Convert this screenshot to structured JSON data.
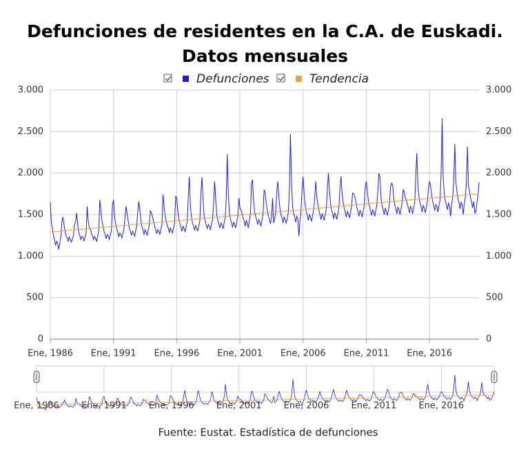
{
  "chart_data": {
    "type": "line",
    "title": "Defunciones de residentes en la C.A. de Euskadi. Datos mensuales",
    "source": "Fuente: Eustat. Estadística de defunciones",
    "x": [
      "1986-01",
      "1986-02",
      "1986-03",
      "1986-04",
      "1986-05",
      "1986-06",
      "1986-07",
      "1986-08",
      "1986-09",
      "1986-10",
      "1986-11",
      "1986-12",
      "1987-01",
      "1987-02",
      "1987-03",
      "1987-04",
      "1987-05",
      "1987-06",
      "1987-07",
      "1987-08",
      "1987-09",
      "1987-10",
      "1987-11",
      "1987-12",
      "1988-01",
      "1988-02",
      "1988-03",
      "1988-04",
      "1988-05",
      "1988-06",
      "1988-07",
      "1988-08",
      "1988-09",
      "1988-10",
      "1988-11",
      "1988-12",
      "1989-01",
      "1989-02",
      "1989-03",
      "1989-04",
      "1989-05",
      "1989-06",
      "1989-07",
      "1989-08",
      "1989-09",
      "1989-10",
      "1989-11",
      "1989-12",
      "1990-01",
      "1990-02",
      "1990-03",
      "1990-04",
      "1990-05",
      "1990-06",
      "1990-07",
      "1990-08",
      "1990-09",
      "1990-10",
      "1990-11",
      "1990-12",
      "1991-01",
      "1991-02",
      "1991-03",
      "1991-04",
      "1991-05",
      "1991-06",
      "1991-07",
      "1991-08",
      "1991-09",
      "1991-10",
      "1991-11",
      "1991-12",
      "1992-01",
      "1992-02",
      "1992-03",
      "1992-04",
      "1992-05",
      "1992-06",
      "1992-07",
      "1992-08",
      "1992-09",
      "1992-10",
      "1992-11",
      "1992-12",
      "1993-01",
      "1993-02",
      "1993-03",
      "1993-04",
      "1993-05",
      "1993-06",
      "1993-07",
      "1993-08",
      "1993-09",
      "1993-10",
      "1993-11",
      "1993-12",
      "1994-01",
      "1994-02",
      "1994-03",
      "1994-04",
      "1994-05",
      "1994-06",
      "1994-07",
      "1994-08",
      "1994-09",
      "1994-10",
      "1994-11",
      "1994-12",
      "1995-01",
      "1995-02",
      "1995-03",
      "1995-04",
      "1995-05",
      "1995-06",
      "1995-07",
      "1995-08",
      "1995-09",
      "1995-10",
      "1995-11",
      "1995-12",
      "1996-01",
      "1996-02",
      "1996-03",
      "1996-04",
      "1996-05",
      "1996-06",
      "1996-07",
      "1996-08",
      "1996-09",
      "1996-10",
      "1996-11",
      "1996-12",
      "1997-01",
      "1997-02",
      "1997-03",
      "1997-04",
      "1997-05",
      "1997-06",
      "1997-07",
      "1997-08",
      "1997-09",
      "1997-10",
      "1997-11",
      "1997-12",
      "1998-01",
      "1998-02",
      "1998-03",
      "1998-04",
      "1998-05",
      "1998-06",
      "1998-07",
      "1998-08",
      "1998-09",
      "1998-10",
      "1998-11",
      "1998-12",
      "1999-01",
      "1999-02",
      "1999-03",
      "1999-04",
      "1999-05",
      "1999-06",
      "1999-07",
      "1999-08",
      "1999-09",
      "1999-10",
      "1999-11",
      "1999-12",
      "2000-01",
      "2000-02",
      "2000-03",
      "2000-04",
      "2000-05",
      "2000-06",
      "2000-07",
      "2000-08",
      "2000-09",
      "2000-10",
      "2000-11",
      "2000-12",
      "2001-01",
      "2001-02",
      "2001-03",
      "2001-04",
      "2001-05",
      "2001-06",
      "2001-07",
      "2001-08",
      "2001-09",
      "2001-10",
      "2001-11",
      "2001-12",
      "2002-01",
      "2002-02",
      "2002-03",
      "2002-04",
      "2002-05",
      "2002-06",
      "2002-07",
      "2002-08",
      "2002-09",
      "2002-10",
      "2002-11",
      "2002-12",
      "2003-01",
      "2003-02",
      "2003-03",
      "2003-04",
      "2003-05",
      "2003-06",
      "2003-07",
      "2003-08",
      "2003-09",
      "2003-10",
      "2003-11",
      "2003-12",
      "2004-01",
      "2004-02",
      "2004-03",
      "2004-04",
      "2004-05",
      "2004-06",
      "2004-07",
      "2004-08",
      "2004-09",
      "2004-10",
      "2004-11",
      "2004-12",
      "2005-01",
      "2005-02",
      "2005-03",
      "2005-04",
      "2005-05",
      "2005-06",
      "2005-07",
      "2005-08",
      "2005-09",
      "2005-10",
      "2005-11",
      "2005-12",
      "2006-01",
      "2006-02",
      "2006-03",
      "2006-04",
      "2006-05",
      "2006-06",
      "2006-07",
      "2006-08",
      "2006-09",
      "2006-10",
      "2006-11",
      "2006-12",
      "2007-01",
      "2007-02",
      "2007-03",
      "2007-04",
      "2007-05",
      "2007-06",
      "2007-07",
      "2007-08",
      "2007-09",
      "2007-10",
      "2007-11",
      "2007-12",
      "2008-01",
      "2008-02",
      "2008-03",
      "2008-04",
      "2008-05",
      "2008-06",
      "2008-07",
      "2008-08",
      "2008-09",
      "2008-10",
      "2008-11",
      "2008-12",
      "2009-01",
      "2009-02",
      "2009-03",
      "2009-04",
      "2009-05",
      "2009-06",
      "2009-07",
      "2009-08",
      "2009-09",
      "2009-10",
      "2009-11",
      "2009-12",
      "2010-01",
      "2010-02",
      "2010-03",
      "2010-04",
      "2010-05",
      "2010-06",
      "2010-07",
      "2010-08",
      "2010-09",
      "2010-10",
      "2010-11",
      "2010-12",
      "2011-01",
      "2011-02",
      "2011-03",
      "2011-04",
      "2011-05",
      "2011-06",
      "2011-07",
      "2011-08",
      "2011-09",
      "2011-10",
      "2011-11",
      "2011-12",
      "2012-01",
      "2012-02",
      "2012-03",
      "2012-04",
      "2012-05",
      "2012-06",
      "2012-07",
      "2012-08",
      "2012-09",
      "2012-10",
      "2012-11",
      "2012-12",
      "2013-01",
      "2013-02",
      "2013-03",
      "2013-04",
      "2013-05",
      "2013-06",
      "2013-07",
      "2013-08",
      "2013-09",
      "2013-10",
      "2013-11",
      "2013-12",
      "2014-01",
      "2014-02",
      "2014-03",
      "2014-04",
      "2014-05",
      "2014-06",
      "2014-07",
      "2014-08",
      "2014-09",
      "2014-10",
      "2014-11",
      "2014-12",
      "2015-01",
      "2015-02",
      "2015-03",
      "2015-04",
      "2015-05",
      "2015-06",
      "2015-07",
      "2015-08",
      "2015-09",
      "2015-10",
      "2015-11",
      "2015-12",
      "2016-01",
      "2016-02",
      "2016-03",
      "2016-04",
      "2016-05",
      "2016-06",
      "2016-07",
      "2016-08",
      "2016-09",
      "2016-10",
      "2016-11",
      "2016-12",
      "2017-01",
      "2017-02",
      "2017-03",
      "2017-04",
      "2017-05",
      "2017-06",
      "2017-07",
      "2017-08",
      "2017-09",
      "2017-10",
      "2017-11",
      "2017-12",
      "2018-01",
      "2018-02",
      "2018-03",
      "2018-04",
      "2018-05",
      "2018-06",
      "2018-07",
      "2018-08",
      "2018-09",
      "2018-10",
      "2018-11",
      "2018-12",
      "2019-01",
      "2019-02",
      "2019-03",
      "2019-04",
      "2019-05",
      "2019-06",
      "2019-07",
      "2019-08",
      "2019-09",
      "2019-10",
      "2019-11",
      "2019-12"
    ],
    "series": [
      {
        "name": "Defunciones",
        "color": "#1c1ce0",
        "values": [
          1650,
          1400,
          1330,
          1250,
          1200,
          1130,
          1180,
          1150,
          1080,
          1160,
          1230,
          1420,
          1470,
          1380,
          1300,
          1250,
          1220,
          1180,
          1230,
          1200,
          1170,
          1210,
          1250,
          1380,
          1410,
          1520,
          1380,
          1280,
          1250,
          1200,
          1240,
          1230,
          1180,
          1230,
          1280,
          1600,
          1420,
          1350,
          1330,
          1280,
          1240,
          1200,
          1240,
          1210,
          1180,
          1250,
          1300,
          1680,
          1550,
          1420,
          1370,
          1300,
          1260,
          1210,
          1260,
          1240,
          1200,
          1260,
          1310,
          1620,
          1680,
          1480,
          1390,
          1330,
          1290,
          1230,
          1280,
          1260,
          1220,
          1280,
          1340,
          1480,
          1600,
          1500,
          1420,
          1340,
          1300,
          1250,
          1300,
          1280,
          1240,
          1300,
          1360,
          1530,
          1660,
          1560,
          1440,
          1350,
          1320,
          1260,
          1320,
          1290,
          1250,
          1310,
          1380,
          1550,
          1520,
          1480,
          1420,
          1360,
          1320,
          1270,
          1320,
          1300,
          1260,
          1330,
          1380,
          1740,
          1600,
          1480,
          1430,
          1370,
          1340,
          1280,
          1340,
          1310,
          1280,
          1340,
          1400,
          1720,
          1700,
          1560,
          1450,
          1390,
          1350,
          1300,
          1360,
          1330,
          1290,
          1360,
          1420,
          1720,
          1960,
          1600,
          1470,
          1400,
          1360,
          1310,
          1370,
          1340,
          1300,
          1370,
          1430,
          1760,
          1950,
          1680,
          1490,
          1420,
          1380,
          1330,
          1380,
          1360,
          1320,
          1380,
          1450,
          1620,
          1900,
          1700,
          1500,
          1430,
          1390,
          1340,
          1400,
          1370,
          1330,
          1400,
          1460,
          1680,
          2230,
          1750,
          1520,
          1450,
          1400,
          1350,
          1410,
          1380,
          1340,
          1410,
          1480,
          1700,
          1580,
          1560,
          1520,
          1460,
          1420,
          1360,
          1430,
          1400,
          1340,
          1430,
          1500,
          1880,
          1920,
          1650,
          1540,
          1480,
          1430,
          1380,
          1440,
          1410,
          1360,
          1440,
          1510,
          1800,
          1760,
          1640,
          1550,
          1490,
          1440,
          1390,
          1460,
          1700,
          1400,
          1450,
          1520,
          1780,
          1900,
          1720,
          1570,
          1500,
          1460,
          1400,
          1470,
          1440,
          1400,
          1460,
          1530,
          1800,
          2470,
          1900,
          1600,
          1520,
          1470,
          1410,
          1480,
          1450,
          1240,
          1420,
          1540,
          1820,
          1960,
          1750,
          1610,
          1540,
          1490,
          1430,
          1500,
          1470,
          1420,
          1490,
          1560,
          1700,
          1900,
          1720,
          1620,
          1550,
          1500,
          1440,
          1510,
          1480,
          1430,
          1500,
          1570,
          1780,
          2000,
          1800,
          1640,
          1560,
          1510,
          1450,
          1520,
          1490,
          1440,
          1510,
          1580,
          1820,
          1960,
          1760,
          1650,
          1580,
          1530,
          1470,
          1540,
          1510,
          1460,
          1530,
          1600,
          1760,
          1750,
          1720,
          1660,
          1590,
          1540,
          1480,
          1550,
          1520,
          1470,
          1540,
          1610,
          1840,
          1900,
          1780,
          1670,
          1600,
          1550,
          1490,
          1560,
          1530,
          1480,
          1550,
          1620,
          1800,
          2000,
          1950,
          1690,
          1610,
          1560,
          1500,
          1580,
          1540,
          1490,
          1560,
          1630,
          1830,
          1880,
          1860,
          1700,
          1620,
          1570,
          1510,
          1590,
          1560,
          1500,
          1570,
          1640,
          1800,
          1780,
          1700,
          1680,
          1620,
          1580,
          1520,
          1600,
          1570,
          1510,
          1580,
          1650,
          1980,
          2240,
          1850,
          1720,
          1640,
          1600,
          1530,
          1610,
          1580,
          1520,
          1590,
          1660,
          1820,
          1900,
          1850,
          1740,
          1660,
          1610,
          1550,
          1620,
          1600,
          1530,
          1610,
          1680,
          2000,
          2660,
          1950,
          1760,
          1670,
          1620,
          1560,
          1640,
          1610,
          1480,
          1620,
          1700,
          1900,
          2350,
          1900,
          1780,
          1690,
          1640,
          1570,
          1650,
          1620,
          1500,
          1630,
          1710,
          1880,
          2320,
          1850,
          1790,
          1700,
          1650,
          1580,
          1660,
          1520,
          1530,
          1640,
          1720,
          1890
        ]
      },
      {
        "name": "Tendencia",
        "color": "#f0a030",
        "x": [
          "1986-01",
          "2019-12"
        ],
        "values": [
          1290,
          1750
        ]
      }
    ],
    "xlim": [
      "1986-01",
      "2019-12"
    ],
    "xticks": [
      {
        "value": "1986-01",
        "label": "Ene, 1986"
      },
      {
        "value": "1991-01",
        "label": "Ene, 1991"
      },
      {
        "value": "1996-01",
        "label": "Ene, 1996"
      },
      {
        "value": "2001-01",
        "label": "Ene, 2001"
      },
      {
        "value": "2006-01",
        "label": "Ene, 2006"
      },
      {
        "value": "2011-01",
        "label": "Ene, 2011"
      },
      {
        "value": "2016-01",
        "label": "Ene, 2016"
      }
    ],
    "ylim": [
      0,
      3000
    ],
    "yticks": [
      0,
      500,
      {
        "value": 1000,
        "label": "1.000"
      },
      {
        "value": 1500,
        "label": "1.500"
      },
      {
        "value": 2000,
        "label": "2.000"
      },
      {
        "value": 2500,
        "label": "2.500"
      },
      {
        "value": 3000,
        "label": "3.000"
      }
    ],
    "grid": true
  }
}
